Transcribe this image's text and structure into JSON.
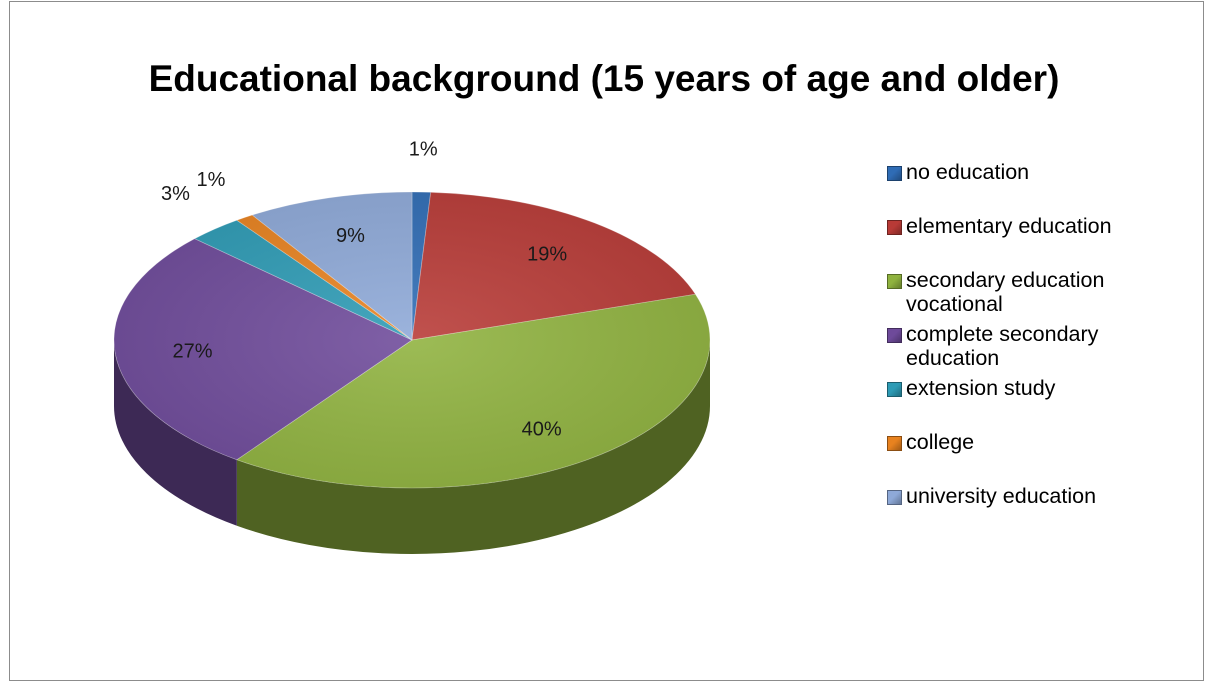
{
  "chart_data": {
    "type": "pie",
    "title": "Educational background (15 years of age and older)",
    "categories": [
      "no education",
      "elementary education",
      "secondary education vocational",
      "complete secondary education",
      "extension study",
      "college",
      "university education"
    ],
    "values": [
      1,
      19,
      40,
      27,
      3,
      1,
      9
    ],
    "data_labels": [
      "1%",
      "19%",
      "40%",
      "27%",
      "3%",
      "1%",
      "9%"
    ],
    "colors": [
      "#2f6cb5",
      "#b83a36",
      "#8fb23e",
      "#6e4a9a",
      "#2d9bb5",
      "#e8821f",
      "#8ea9d8"
    ],
    "legend_lines": [
      [
        "no education"
      ],
      [
        "elementary education"
      ],
      [
        "secondary education",
        "vocational"
      ],
      [
        "complete secondary",
        "education"
      ],
      [
        "extension study"
      ],
      [
        "college"
      ],
      [
        "university education"
      ]
    ],
    "legend_position": "right",
    "style": "3d-pie"
  }
}
